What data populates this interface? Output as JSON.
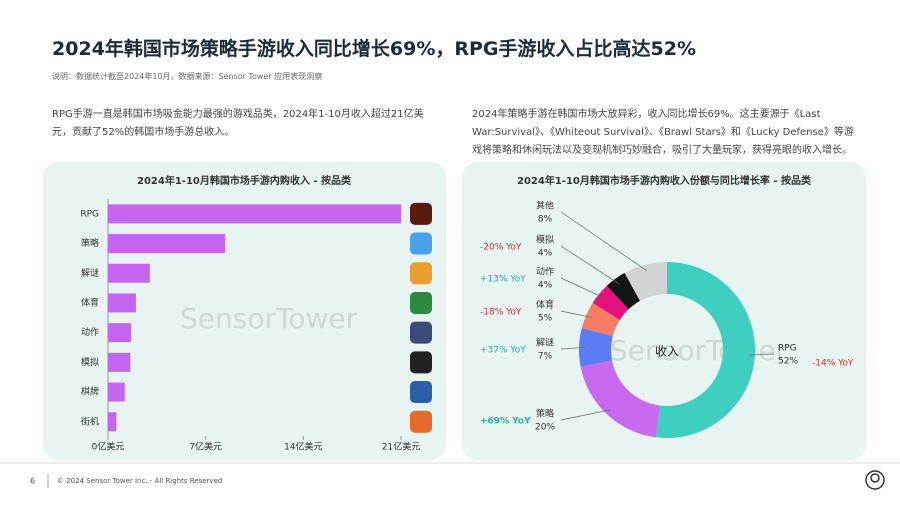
{
  "header": {
    "title": "2024年韩国市场策略手游收入同比增长69%，RPG手游收入占比高达52%",
    "note": "说明：数据统计截至2024年10月。数据来源：Sensor Tower 应用表现洞察"
  },
  "paragraphs": [
    "RPG手游一直是韩国市场吸金能力最强的游戏品类，2024年1-10月收入超过21亿美元，贡献了52%的韩国市场手游总收入。",
    "2024年策略手游在韩国市场大放异彩，收入同比增长69%。这主要源于《Last War:Survival》、《Whiteout Survival》、《Brawl Stars》和《Lucky Defense》等游戏将策略和休闲玩法以及变现机制巧妙融合，吸引了大量玩家，获得亮眼的收入增长。"
  ],
  "watermark": "SensorTower",
  "chart_data": [
    {
      "type": "hbar",
      "title": "2024年1-10月韩国市场手游内购收入 - 按品类",
      "color": "#c565f0",
      "categories": [
        "RPG",
        "策略",
        "解谜",
        "体育",
        "动作",
        "模拟",
        "棋牌",
        "街机"
      ],
      "values": [
        21,
        8.4,
        3.0,
        2.0,
        1.65,
        1.6,
        1.2,
        0.6
      ],
      "xlim": [
        0,
        21
      ],
      "xticks": [
        {
          "value": 0,
          "label": "0亿美元"
        },
        {
          "value": 7,
          "label": "7亿美元"
        },
        {
          "value": 14,
          "label": "14亿美元"
        },
        {
          "value": 21,
          "label": "21亿美元"
        }
      ]
    },
    {
      "type": "donut",
      "title": "2024年1-10月韩国市场手游内购收入份额与同比增长率 - 按品类",
      "center_label": "收入",
      "categories": [
        "RPG",
        "策略",
        "解谜",
        "体育",
        "动作",
        "模拟",
        "其他"
      ],
      "values": [
        52,
        20,
        7,
        5,
        4,
        4,
        8
      ],
      "value_labels": [
        "52%",
        "20%",
        "7%",
        "5%",
        "4%",
        "4%",
        "8%"
      ],
      "colors": [
        "#3fcfc1",
        "#c86af0",
        "#5b7cf5",
        "#f77e62",
        "#e3127d",
        "#141414",
        "#d3d3d3"
      ],
      "yoy_labels": [
        "-14% YoY",
        "+69% YoY",
        "+37% YoY",
        "-18% YoY",
        "+13% YoY",
        "-20% YoY",
        null
      ]
    }
  ],
  "footer": {
    "page": "6",
    "copyright": "© 2024 Sensor Tower Inc. - All Rights Reserved"
  }
}
